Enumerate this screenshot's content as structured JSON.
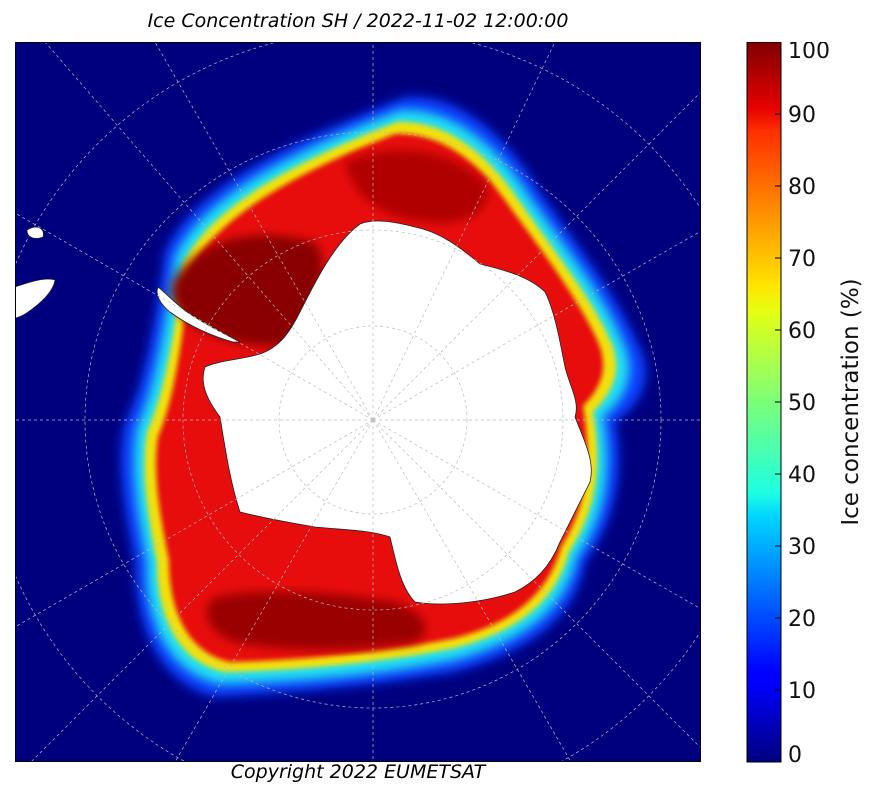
{
  "title": "Ice Concentration SH / 2022-11-02 12:00:00",
  "copyright": "Copyright 2022 EUMETSAT",
  "colorbar": {
    "label": "Ice concentration (%)",
    "min": 0,
    "max": 100,
    "ticks": [
      "0",
      "10",
      "20",
      "30",
      "40",
      "50",
      "60",
      "70",
      "80",
      "90",
      "100"
    ],
    "colormap": "jet"
  },
  "map": {
    "projection": "south-polar-stereographic",
    "ocean_color": "#00007f",
    "land_color": "#ffffff",
    "grid": true
  }
}
